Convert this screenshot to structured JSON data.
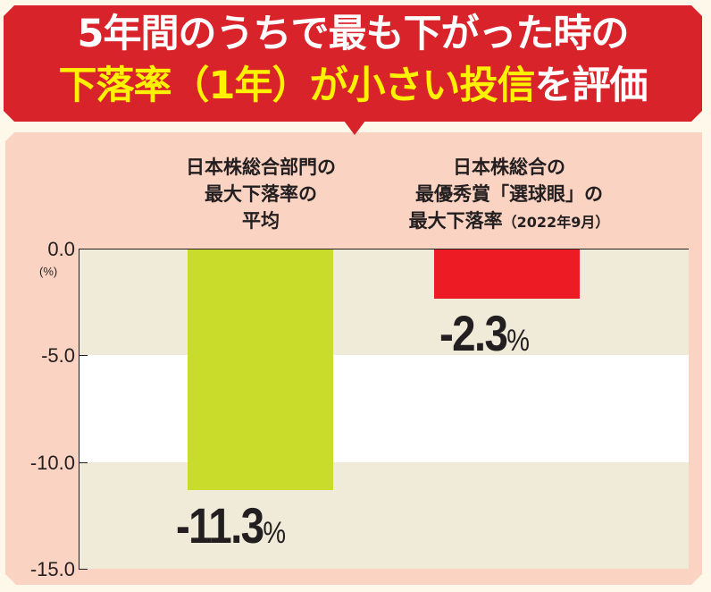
{
  "banner": {
    "line1": "5年間のうちで最も下がった時の",
    "line2_highlight_1": "下落率（1年）",
    "line2_highlight_2": "が小さい投信",
    "line2_rest": "を評価",
    "colors": {
      "background": "#d9232a",
      "text": "#ffffff",
      "highlight": "#fff200"
    }
  },
  "chart_data": {
    "type": "bar",
    "title": "5年間のうちで最も下がった時の下落率（1年）が小さい投信を評価",
    "categories": [
      "日本株総合部門の最大下落率の平均",
      "日本株総合の最優秀賞「選球眼」の最大下落率（2022年9月）"
    ],
    "values": [
      -11.3,
      -2.3
    ],
    "value_labels": [
      "-11.3",
      "-2.3"
    ],
    "value_suffix": "%",
    "colors": [
      "#c9dc2b",
      "#ed1c24"
    ],
    "xlabel": "",
    "ylabel": "(%)",
    "ylim": [
      -15.0,
      0.0
    ],
    "yticks": [
      0.0,
      -5.0,
      -10.0,
      -15.0
    ],
    "ytick_labels": [
      "0.0",
      "-5.0",
      "-10.0",
      "-15.0"
    ],
    "grid": false,
    "legend": null
  },
  "categories": [
    {
      "lines": [
        "日本株総合部門の",
        "最大下落率の",
        "平均"
      ]
    },
    {
      "lines": [
        "日本株総合の",
        "最優秀賞「選球眼」の",
        "最大下落率"
      ],
      "suffix": "（2022年9月）"
    }
  ]
}
